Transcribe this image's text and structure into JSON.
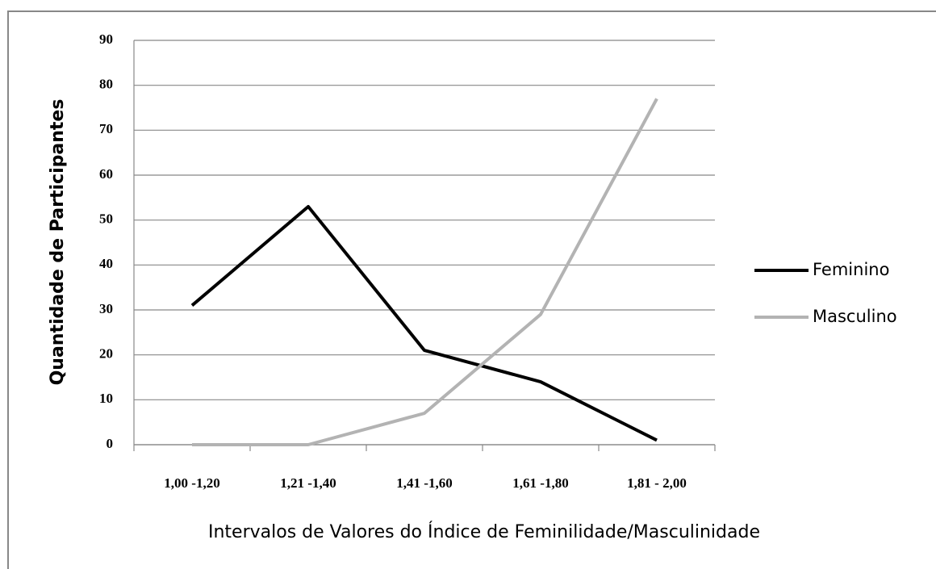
{
  "chart_data": {
    "type": "line",
    "x_label": "Intervalos de Valores do Índice de Feminilidade/Masculinidade",
    "y_label": "Quantidade de Participantes",
    "categories": [
      "1,00 -1,20",
      "1,21 -1,40",
      "1,41 -1,60",
      "1,61 -1,80",
      "1,81 - 2,00"
    ],
    "series": [
      {
        "name": "Feminino",
        "color": "#000000",
        "values": [
          31,
          53,
          21,
          14,
          1
        ]
      },
      {
        "name": "Masculino",
        "color": "#b3b3b3",
        "values": [
          0,
          0,
          7,
          29,
          77
        ]
      }
    ],
    "ylim": [
      0,
      90
    ],
    "yticks": [
      0,
      10,
      20,
      30,
      40,
      50,
      60,
      70,
      80,
      90
    ],
    "grid": true,
    "legend": "right"
  }
}
